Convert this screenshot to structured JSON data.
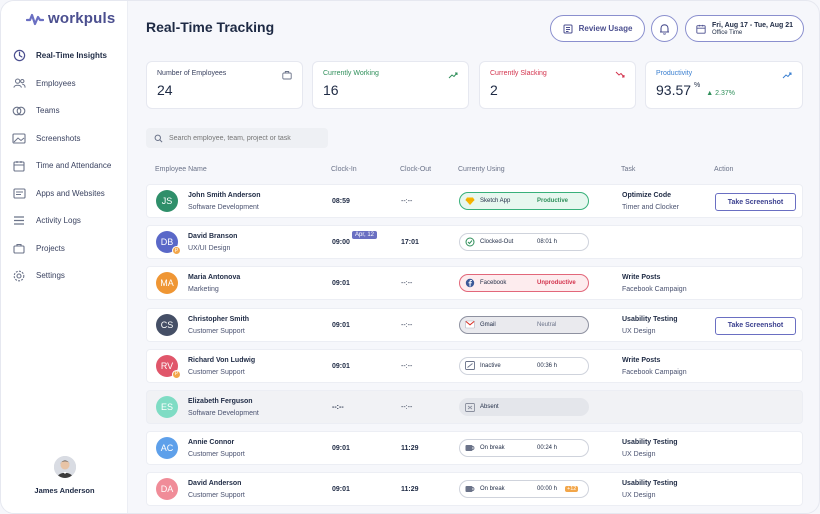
{
  "app": {
    "logo_text": "workpuls"
  },
  "sidebar": {
    "items": [
      {
        "label": "Real-Time Insights",
        "icon": "realtime-icon",
        "active": true
      },
      {
        "label": "Employees",
        "icon": "employees-icon"
      },
      {
        "label": "Teams",
        "icon": "teams-icon"
      },
      {
        "label": "Screenshots",
        "icon": "screenshots-icon"
      },
      {
        "label": "Time and Attendance",
        "icon": "calendar-icon"
      },
      {
        "label": "Apps and Websites",
        "icon": "apps-icon"
      },
      {
        "label": "Activity Logs",
        "icon": "activity-logs-icon"
      },
      {
        "label": "Projects",
        "icon": "projects-icon"
      },
      {
        "label": "Settings",
        "icon": "settings-icon"
      }
    ],
    "user_name": "James Anderson"
  },
  "header": {
    "title": "Real-Time Tracking",
    "review_label": "Review Usage",
    "date_range": "Fri, Aug 17 - Tue, Aug 21",
    "date_sub": "Office Time"
  },
  "stats": [
    {
      "label": "Number of Employees",
      "value": "24",
      "color": "#1e2a44"
    },
    {
      "label": "Currently Working",
      "value": "16",
      "color": "#2f8f5a"
    },
    {
      "label": "Currently Slacking",
      "value": "2",
      "color": "#d3334d"
    },
    {
      "label": "Productivity",
      "value": "93.57",
      "unit": "%",
      "delta": "▲ 2.37%",
      "color": "#3a7fd0"
    }
  ],
  "search": {
    "placeholder": "Search employee, team, project or task"
  },
  "table": {
    "headers": [
      "Employee Name",
      "Clock-In",
      "Clock-Out",
      "Currenty Using",
      "Task",
      "Action"
    ],
    "rows": [
      {
        "initials": "JS",
        "color": "#2f8f6a",
        "name": "John Smith Anderson",
        "dept": "Software Development",
        "clock_in": "08:59",
        "clock_out": "--:--",
        "pill": "productive",
        "pill_icon": "sketch-icon",
        "app": "Sketch App",
        "status": "Productive",
        "task": "Optimize Code",
        "task_sub": "Timer and Clocker",
        "action": "Take Screenshot"
      },
      {
        "initials": "DB",
        "color": "#5a68c8",
        "p": true,
        "name": "David Branson",
        "dept": "UX/UI Design",
        "clock_in": "09:00",
        "date_badge": "Apr, 12",
        "clock_out": "17:01",
        "clock_out_bold": true,
        "pill": "grey",
        "pill_icon": "check-circle-icon",
        "app": "Clocked-Out",
        "status": "08:01 h",
        "task": "",
        "task_sub": ""
      },
      {
        "initials": "MA",
        "color": "#ef9634",
        "name": "Maria Antonova",
        "dept": "Marketing",
        "clock_in": "09:01",
        "clock_out": "--:--",
        "pill": "unproductive",
        "pill_icon": "facebook-icon",
        "app": "Facebook",
        "status": "Unproductive",
        "task": "Write Posts",
        "task_sub": "Facebook Campaign"
      },
      {
        "initials": "CS",
        "color": "#454f66",
        "name": "Christopher Smith",
        "dept": "Customer Support",
        "clock_in": "09:01",
        "clock_out": "--:--",
        "pill": "neutral",
        "pill_icon": "gmail-icon",
        "app": "Gmail",
        "status": "Neutral",
        "task": "Usability Testing",
        "task_sub": "UX Design",
        "action": "Take Screenshot"
      },
      {
        "initials": "RV",
        "color": "#e0566a",
        "p": true,
        "name": "Richard Von Ludwig",
        "dept": "Customer Support",
        "clock_in": "09:01",
        "clock_out": "--:--",
        "pill": "grey",
        "pill_icon": "inactive-icon",
        "app": "Inactive",
        "status": "00:36 h",
        "task": "Write Posts",
        "task_sub": "Facebook Campaign"
      },
      {
        "initials": "ES",
        "color": "#7fdcc4",
        "name": "Elizabeth Ferguson",
        "dept": "Software Development",
        "clock_in": "--:--",
        "clock_out": "--:--",
        "pill": "absentpill",
        "pill_icon": "absent-icon",
        "app": "Absent",
        "status": "",
        "task": "",
        "task_sub": "",
        "absent": true
      },
      {
        "initials": "AC",
        "color": "#5ea0ea",
        "name": "Annie Connor",
        "dept": "Customer Support",
        "clock_in": "09:01",
        "clock_out": "11:29",
        "clock_out_bold": true,
        "pill": "grey",
        "pill_icon": "break-icon",
        "app": "On break",
        "status": "00:24 h",
        "task": "Usability Testing",
        "task_sub": "UX Design"
      },
      {
        "initials": "DA",
        "color": "#f08c98",
        "name": "David Anderson",
        "dept": "Customer Support",
        "clock_in": "09:01",
        "clock_out": "11:29",
        "clock_out_bold": true,
        "pill": "grey",
        "pill_icon": "break-icon",
        "app": "On break",
        "status": "00:00 h",
        "bonus": "+12",
        "task": "Usability Testing",
        "task_sub": "UX Design"
      }
    ]
  }
}
